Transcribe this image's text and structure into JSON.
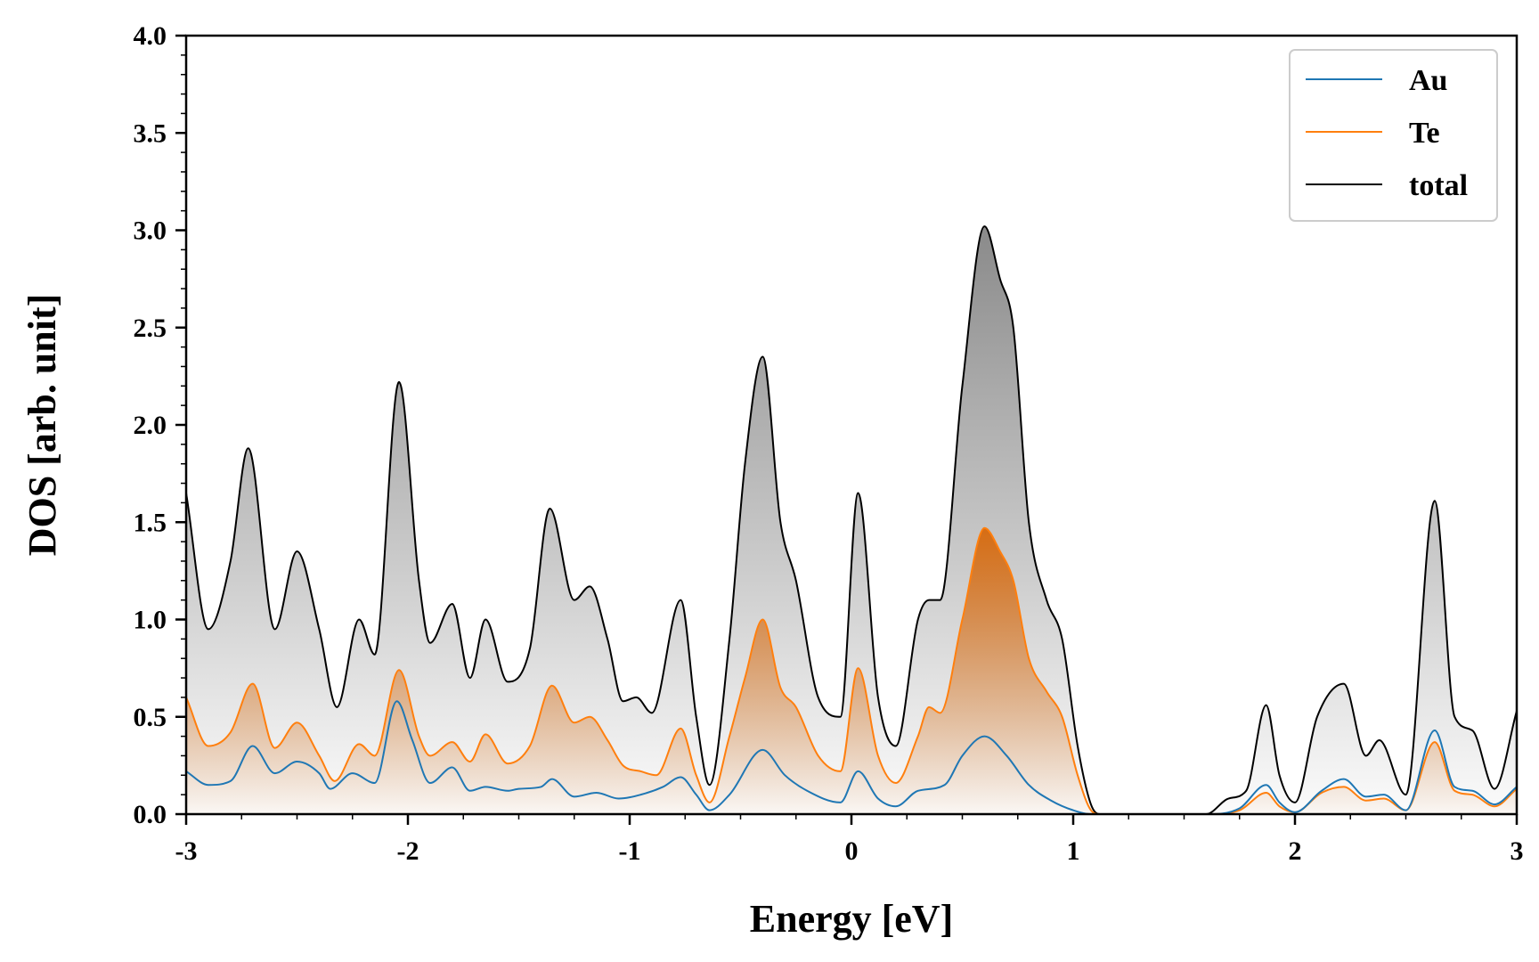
{
  "chart_data": {
    "type": "area",
    "xlabel": "Energy [eV]",
    "ylabel": "DOS [arb. unit]",
    "xlim": [
      -3,
      3
    ],
    "ylim": [
      0,
      4
    ],
    "xticks": [
      -3,
      -2,
      -1,
      0,
      1,
      2,
      3
    ],
    "xtick_labels": [
      "-3",
      "-2",
      "-1",
      "0",
      "1",
      "2",
      "3"
    ],
    "yticks": [
      0,
      0.5,
      1,
      1.5,
      2,
      2.5,
      3,
      3.5,
      4
    ],
    "ytick_labels": [
      "0.0",
      "0.5",
      "1.0",
      "1.5",
      "2.0",
      "2.5",
      "3.0",
      "3.5",
      "4.0"
    ],
    "grid": false,
    "legend_position": "top-right",
    "series": [
      {
        "name": "Au",
        "color": "#1f77b4",
        "fill": "none",
        "points": [
          [
            -3.0,
            0.22
          ],
          [
            -2.9,
            0.15
          ],
          [
            -2.8,
            0.17
          ],
          [
            -2.7,
            0.35
          ],
          [
            -2.6,
            0.21
          ],
          [
            -2.5,
            0.27
          ],
          [
            -2.4,
            0.21
          ],
          [
            -2.35,
            0.13
          ],
          [
            -2.25,
            0.21
          ],
          [
            -2.15,
            0.16
          ],
          [
            -2.05,
            0.58
          ],
          [
            -1.98,
            0.38
          ],
          [
            -1.9,
            0.16
          ],
          [
            -1.8,
            0.24
          ],
          [
            -1.72,
            0.12
          ],
          [
            -1.65,
            0.14
          ],
          [
            -1.55,
            0.12
          ],
          [
            -1.5,
            0.13
          ],
          [
            -1.4,
            0.14
          ],
          [
            -1.35,
            0.18
          ],
          [
            -1.25,
            0.09
          ],
          [
            -1.15,
            0.11
          ],
          [
            -1.05,
            0.08
          ],
          [
            -0.95,
            0.1
          ],
          [
            -0.85,
            0.14
          ],
          [
            -0.77,
            0.19
          ],
          [
            -0.7,
            0.1
          ],
          [
            -0.64,
            0.02
          ],
          [
            -0.55,
            0.1
          ],
          [
            -0.4,
            0.33
          ],
          [
            -0.3,
            0.2
          ],
          [
            -0.2,
            0.12
          ],
          [
            -0.05,
            0.06
          ],
          [
            0.03,
            0.22
          ],
          [
            0.12,
            0.08
          ],
          [
            0.2,
            0.04
          ],
          [
            0.3,
            0.12
          ],
          [
            0.42,
            0.15
          ],
          [
            0.5,
            0.3
          ],
          [
            0.6,
            0.4
          ],
          [
            0.7,
            0.3
          ],
          [
            0.8,
            0.15
          ],
          [
            0.9,
            0.07
          ],
          [
            1.0,
            0.02
          ],
          [
            1.08,
            0.0
          ],
          [
            1.6,
            0.0
          ],
          [
            1.75,
            0.03
          ],
          [
            1.87,
            0.15
          ],
          [
            1.93,
            0.06
          ],
          [
            2.0,
            0.01
          ],
          [
            2.12,
            0.12
          ],
          [
            2.22,
            0.18
          ],
          [
            2.32,
            0.09
          ],
          [
            2.4,
            0.1
          ],
          [
            2.5,
            0.02
          ],
          [
            2.63,
            0.43
          ],
          [
            2.72,
            0.14
          ],
          [
            2.8,
            0.12
          ],
          [
            2.9,
            0.05
          ],
          [
            3.0,
            0.14
          ]
        ]
      },
      {
        "name": "Te",
        "color": "#ff7f0e",
        "fill": "#e07a25",
        "points": [
          [
            -3.0,
            0.6
          ],
          [
            -2.9,
            0.35
          ],
          [
            -2.8,
            0.42
          ],
          [
            -2.7,
            0.67
          ],
          [
            -2.6,
            0.34
          ],
          [
            -2.5,
            0.47
          ],
          [
            -2.4,
            0.3
          ],
          [
            -2.33,
            0.17
          ],
          [
            -2.22,
            0.36
          ],
          [
            -2.15,
            0.3
          ],
          [
            -2.04,
            0.74
          ],
          [
            -1.95,
            0.4
          ],
          [
            -1.9,
            0.3
          ],
          [
            -1.8,
            0.37
          ],
          [
            -1.72,
            0.27
          ],
          [
            -1.65,
            0.41
          ],
          [
            -1.55,
            0.26
          ],
          [
            -1.45,
            0.35
          ],
          [
            -1.35,
            0.66
          ],
          [
            -1.25,
            0.47
          ],
          [
            -1.18,
            0.5
          ],
          [
            -1.1,
            0.38
          ],
          [
            -1.03,
            0.25
          ],
          [
            -0.95,
            0.22
          ],
          [
            -0.88,
            0.2
          ],
          [
            -0.77,
            0.44
          ],
          [
            -0.7,
            0.2
          ],
          [
            -0.64,
            0.06
          ],
          [
            -0.55,
            0.4
          ],
          [
            -0.48,
            0.7
          ],
          [
            -0.4,
            1.0
          ],
          [
            -0.32,
            0.65
          ],
          [
            -0.25,
            0.55
          ],
          [
            -0.15,
            0.3
          ],
          [
            -0.05,
            0.22
          ],
          [
            0.03,
            0.75
          ],
          [
            0.12,
            0.3
          ],
          [
            0.2,
            0.16
          ],
          [
            0.3,
            0.4
          ],
          [
            0.35,
            0.55
          ],
          [
            0.4,
            0.52
          ],
          [
            0.5,
            1.0
          ],
          [
            0.6,
            1.47
          ],
          [
            0.67,
            1.35
          ],
          [
            0.73,
            1.2
          ],
          [
            0.8,
            0.8
          ],
          [
            0.88,
            0.63
          ],
          [
            0.95,
            0.5
          ],
          [
            1.02,
            0.2
          ],
          [
            1.08,
            0.02
          ],
          [
            1.12,
            0.0
          ],
          [
            1.6,
            0.0
          ],
          [
            1.75,
            0.02
          ],
          [
            1.87,
            0.11
          ],
          [
            1.93,
            0.04
          ],
          [
            2.0,
            0.01
          ],
          [
            2.12,
            0.11
          ],
          [
            2.22,
            0.14
          ],
          [
            2.32,
            0.07
          ],
          [
            2.4,
            0.08
          ],
          [
            2.5,
            0.02
          ],
          [
            2.63,
            0.37
          ],
          [
            2.72,
            0.12
          ],
          [
            2.8,
            0.1
          ],
          [
            2.9,
            0.04
          ],
          [
            3.0,
            0.13
          ]
        ]
      },
      {
        "name": "total",
        "color": "#000000",
        "fill": "#8c8c8c",
        "points": [
          [
            -3.0,
            1.65
          ],
          [
            -2.9,
            0.95
          ],
          [
            -2.8,
            1.3
          ],
          [
            -2.72,
            1.88
          ],
          [
            -2.6,
            0.95
          ],
          [
            -2.5,
            1.35
          ],
          [
            -2.4,
            0.95
          ],
          [
            -2.32,
            0.55
          ],
          [
            -2.22,
            1.0
          ],
          [
            -2.15,
            0.82
          ],
          [
            -2.04,
            2.22
          ],
          [
            -1.95,
            1.2
          ],
          [
            -1.9,
            0.88
          ],
          [
            -1.8,
            1.08
          ],
          [
            -1.72,
            0.7
          ],
          [
            -1.65,
            1.0
          ],
          [
            -1.55,
            0.68
          ],
          [
            -1.45,
            0.85
          ],
          [
            -1.36,
            1.57
          ],
          [
            -1.25,
            1.1
          ],
          [
            -1.18,
            1.17
          ],
          [
            -1.1,
            0.9
          ],
          [
            -1.03,
            0.58
          ],
          [
            -0.97,
            0.6
          ],
          [
            -0.9,
            0.52
          ],
          [
            -0.77,
            1.1
          ],
          [
            -0.7,
            0.5
          ],
          [
            -0.64,
            0.15
          ],
          [
            -0.55,
            0.9
          ],
          [
            -0.48,
            1.8
          ],
          [
            -0.4,
            2.35
          ],
          [
            -0.32,
            1.5
          ],
          [
            -0.25,
            1.2
          ],
          [
            -0.15,
            0.6
          ],
          [
            -0.05,
            0.5
          ],
          [
            0.03,
            1.65
          ],
          [
            0.12,
            0.6
          ],
          [
            0.2,
            0.35
          ],
          [
            0.3,
            1.0
          ],
          [
            0.35,
            1.1
          ],
          [
            0.4,
            1.1
          ],
          [
            0.5,
            2.2
          ],
          [
            0.6,
            3.02
          ],
          [
            0.67,
            2.75
          ],
          [
            0.73,
            2.5
          ],
          [
            0.8,
            1.5
          ],
          [
            0.88,
            1.1
          ],
          [
            0.95,
            0.9
          ],
          [
            1.02,
            0.35
          ],
          [
            1.08,
            0.05
          ],
          [
            1.12,
            0.0
          ],
          [
            1.6,
            0.0
          ],
          [
            1.7,
            0.08
          ],
          [
            1.78,
            0.12
          ],
          [
            1.87,
            0.56
          ],
          [
            1.93,
            0.2
          ],
          [
            2.0,
            0.06
          ],
          [
            2.1,
            0.5
          ],
          [
            2.22,
            0.67
          ],
          [
            2.32,
            0.3
          ],
          [
            2.38,
            0.38
          ],
          [
            2.5,
            0.1
          ],
          [
            2.63,
            1.61
          ],
          [
            2.72,
            0.5
          ],
          [
            2.8,
            0.43
          ],
          [
            2.9,
            0.13
          ],
          [
            3.0,
            0.53
          ]
        ]
      }
    ]
  }
}
